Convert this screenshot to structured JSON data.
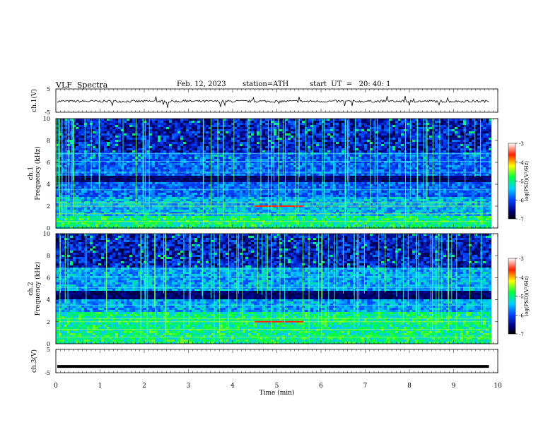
{
  "header": {
    "title": "VLF  Spectra",
    "date": "Feb. 12, 2023",
    "station": "station=ATH",
    "start": "start  UT  =   20: 40: 1"
  },
  "chart_data": [
    {
      "type": "line",
      "panel": "ch1-waveform",
      "ylabel": "ch.1(V)",
      "yticks": [
        "5",
        "-5"
      ],
      "ylim": [
        -5,
        5
      ],
      "xlim": [
        0,
        10
      ],
      "data_end_min": 9.8,
      "series": [
        {
          "mean": -0.3,
          "noise": 0.5,
          "spikes": true
        }
      ]
    },
    {
      "type": "heatmap",
      "panel": "ch1-spectrogram",
      "ylabel": "ch.1\nFrequency (kHz)",
      "yticks": [
        "0",
        "2",
        "4",
        "6",
        "8",
        "10"
      ],
      "ylim": [
        0,
        10
      ],
      "xlim": [
        0,
        10
      ],
      "data_end_min": 9.8,
      "colorbar": {
        "label": "log(PSD)(V²/Hz)",
        "ticks": [
          "-3",
          "-4",
          "-5",
          "-6",
          "-7"
        ],
        "range": [
          -7,
          -3
        ]
      }
    },
    {
      "type": "heatmap",
      "panel": "ch2-spectrogram",
      "ylabel": "ch.2\nFrequency (kHz)",
      "yticks": [
        "0",
        "2",
        "4",
        "6",
        "8",
        "10"
      ],
      "ylim": [
        0,
        10
      ],
      "xlim": [
        0,
        10
      ],
      "data_end_min": 9.8,
      "colorbar": {
        "label": "log(PSD)(V²/Hz)",
        "ticks": [
          "-3",
          "-4",
          "-5",
          "-6",
          "-7"
        ],
        "range": [
          -7,
          -3
        ]
      }
    },
    {
      "type": "line",
      "panel": "ch3-waveform",
      "ylabel": "ch.3(V)",
      "yticks": [
        "5",
        "-5"
      ],
      "ylim": [
        -5,
        5
      ],
      "xlim": [
        0,
        10
      ],
      "data_end_min": 9.8,
      "series": [
        {
          "mean": -2.3,
          "noise": 0.0,
          "spikes": false
        }
      ]
    }
  ],
  "xaxis": {
    "label": "Time  (min)",
    "ticks": [
      "0",
      "1",
      "2",
      "3",
      "4",
      "5",
      "6",
      "7",
      "8",
      "9",
      "10"
    ]
  },
  "colors": {
    "axis": "#000000",
    "trace": "#000000"
  }
}
